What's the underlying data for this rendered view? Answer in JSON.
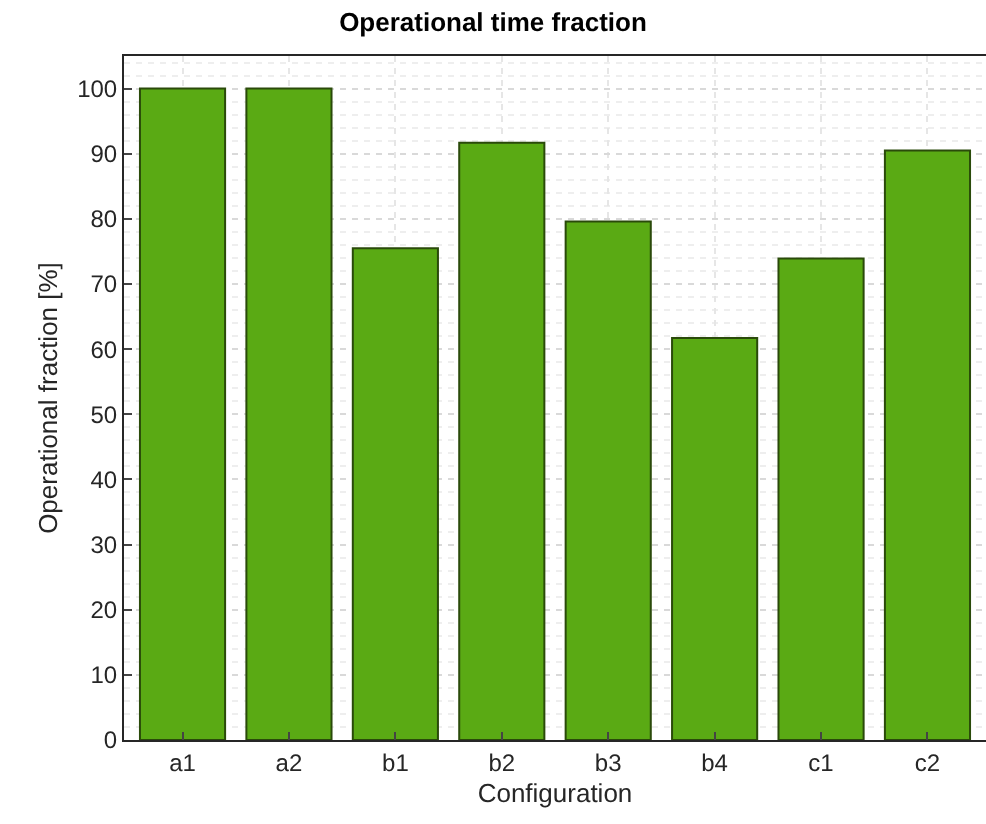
{
  "chart_data": {
    "type": "bar",
    "title": "Operational time fraction",
    "xlabel": "Configuration",
    "ylabel": "Operational fraction [%]",
    "categories": [
      "a1",
      "a2",
      "b1",
      "b2",
      "b3",
      "b4",
      "c1",
      "c2"
    ],
    "values": [
      100,
      100,
      75.5,
      91.7,
      79.6,
      61.7,
      73.9,
      90.5
    ],
    "color": "#5aaa14",
    "ylim": [
      0,
      105
    ],
    "yticks": [
      0,
      10,
      20,
      30,
      40,
      50,
      60,
      70,
      80,
      90,
      100
    ],
    "grid": true
  }
}
